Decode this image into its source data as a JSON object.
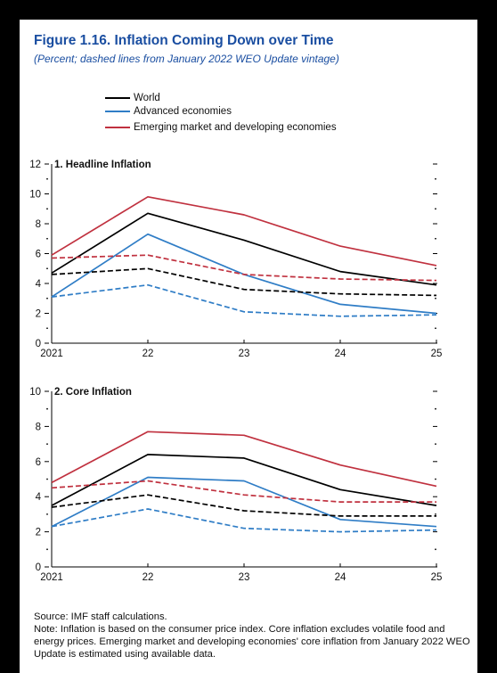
{
  "figure": {
    "title": "Figure 1.16. Inflation Coming Down over Time",
    "subtitle": "(Percent; dashed lines from January 2022 WEO Update vintage)"
  },
  "legend": [
    {
      "label": "World",
      "color": "#000000"
    },
    {
      "label": "Advanced economies",
      "color": "#2f7dc6"
    },
    {
      "label": "Emerging market and developing economies",
      "color": "#c0313f"
    }
  ],
  "chart_data": [
    {
      "type": "line",
      "title": "1. Headline Inflation",
      "x": [
        "2021",
        "22",
        "23",
        "24",
        "25"
      ],
      "ylim": [
        0,
        12
      ],
      "yticks": [
        "0",
        "2",
        "4",
        "6",
        "8",
        "10",
        "12"
      ],
      "series": [
        {
          "name": "World",
          "color": "#000000",
          "dashed": false,
          "values": [
            4.7,
            8.7,
            6.9,
            4.8,
            3.9
          ]
        },
        {
          "name": "Advanced economies",
          "color": "#2f7dc6",
          "dashed": false,
          "values": [
            3.1,
            7.3,
            4.6,
            2.6,
            2.0
          ]
        },
        {
          "name": "Emerging market and developing economies",
          "color": "#c0313f",
          "dashed": false,
          "values": [
            5.9,
            9.8,
            8.6,
            6.5,
            5.2
          ]
        },
        {
          "name": "World",
          "color": "#000000",
          "dashed": true,
          "values": [
            4.6,
            5.0,
            3.6,
            3.3,
            3.2
          ]
        },
        {
          "name": "Advanced economies",
          "color": "#2f7dc6",
          "dashed": true,
          "values": [
            3.1,
            3.9,
            2.1,
            1.8,
            1.9
          ]
        },
        {
          "name": "Emerging market and developing economies",
          "color": "#c0313f",
          "dashed": true,
          "values": [
            5.7,
            5.9,
            4.6,
            4.3,
            4.2
          ]
        }
      ]
    },
    {
      "type": "line",
      "title": "2. Core Inflation",
      "x": [
        "2021",
        "22",
        "23",
        "24",
        "25"
      ],
      "ylim": [
        0,
        10
      ],
      "yticks": [
        "0",
        "2",
        "4",
        "6",
        "8",
        "10"
      ],
      "series": [
        {
          "name": "World",
          "color": "#000000",
          "dashed": false,
          "values": [
            3.5,
            6.4,
            6.2,
            4.4,
            3.5
          ]
        },
        {
          "name": "Advanced economies",
          "color": "#2f7dc6",
          "dashed": false,
          "values": [
            2.3,
            5.1,
            4.9,
            2.7,
            2.3
          ]
        },
        {
          "name": "Emerging market and developing economies",
          "color": "#c0313f",
          "dashed": false,
          "values": [
            4.8,
            7.7,
            7.5,
            5.8,
            4.6
          ]
        },
        {
          "name": "World",
          "color": "#000000",
          "dashed": true,
          "values": [
            3.4,
            4.1,
            3.2,
            2.9,
            2.9
          ]
        },
        {
          "name": "Advanced economies",
          "color": "#2f7dc6",
          "dashed": true,
          "values": [
            2.3,
            3.3,
            2.2,
            2.0,
            2.1
          ]
        },
        {
          "name": "Emerging market and developing economies",
          "color": "#c0313f",
          "dashed": true,
          "values": [
            4.5,
            4.9,
            4.1,
            3.7,
            3.7
          ]
        }
      ]
    }
  ],
  "notes": {
    "source": "Source: IMF staff calculations.",
    "note": "Note: Inflation is based on the consumer price index. Core inflation excludes volatile food and energy prices. Emerging market and developing economies' core inflation from January 2022 WEO Update is estimated using available data."
  }
}
